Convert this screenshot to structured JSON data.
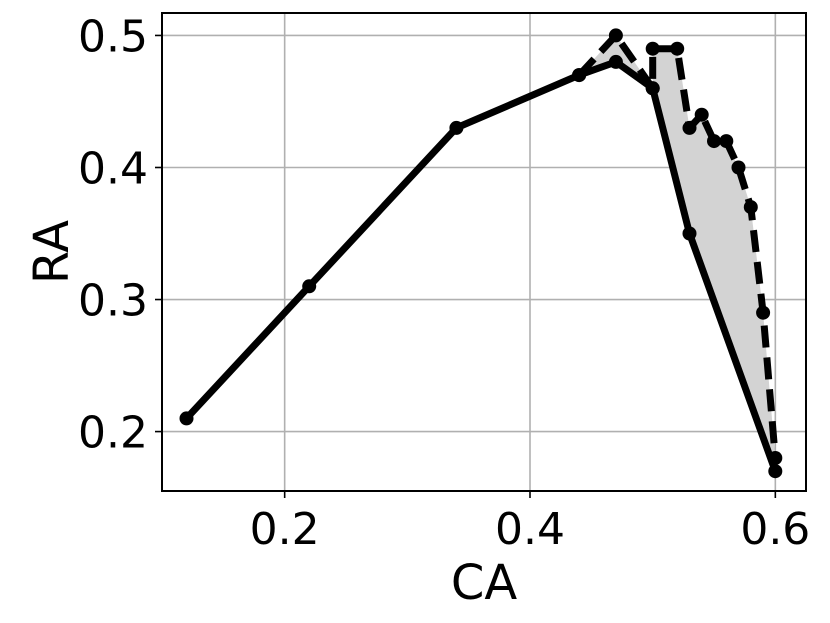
{
  "chart_data": {
    "type": "line",
    "xlabel": "CA",
    "ylabel": "RA",
    "xlim": [
      0.1,
      0.625
    ],
    "ylim": [
      0.155,
      0.517
    ],
    "xticks": [
      {
        "value": 0.2,
        "label": "0.2"
      },
      {
        "value": 0.4,
        "label": "0.4"
      },
      {
        "value": 0.6,
        "label": "0.6"
      }
    ],
    "yticks": [
      {
        "value": 0.2,
        "label": "0.2"
      },
      {
        "value": 0.3,
        "label": "0.3"
      },
      {
        "value": 0.4,
        "label": "0.4"
      },
      {
        "value": 0.5,
        "label": "0.5"
      }
    ],
    "grid": true,
    "colors": {
      "series": "#000000",
      "fill": "#d3d3d3",
      "grid": "#b0b0b0"
    },
    "series": [
      {
        "style": "solid",
        "x": [
          0.12,
          0.22,
          0.34,
          0.44,
          0.47,
          0.5,
          0.53,
          0.6
        ],
        "y": [
          0.21,
          0.31,
          0.43,
          0.47,
          0.48,
          0.46,
          0.35,
          0.17
        ]
      },
      {
        "style": "dashed",
        "x": [
          0.44,
          0.47,
          0.5,
          0.5,
          0.52,
          0.53,
          0.54,
          0.55,
          0.56,
          0.57,
          0.58,
          0.59,
          0.6
        ],
        "y": [
          0.47,
          0.5,
          0.46,
          0.49,
          0.49,
          0.43,
          0.44,
          0.42,
          0.42,
          0.4,
          0.37,
          0.29,
          0.18
        ]
      }
    ]
  }
}
